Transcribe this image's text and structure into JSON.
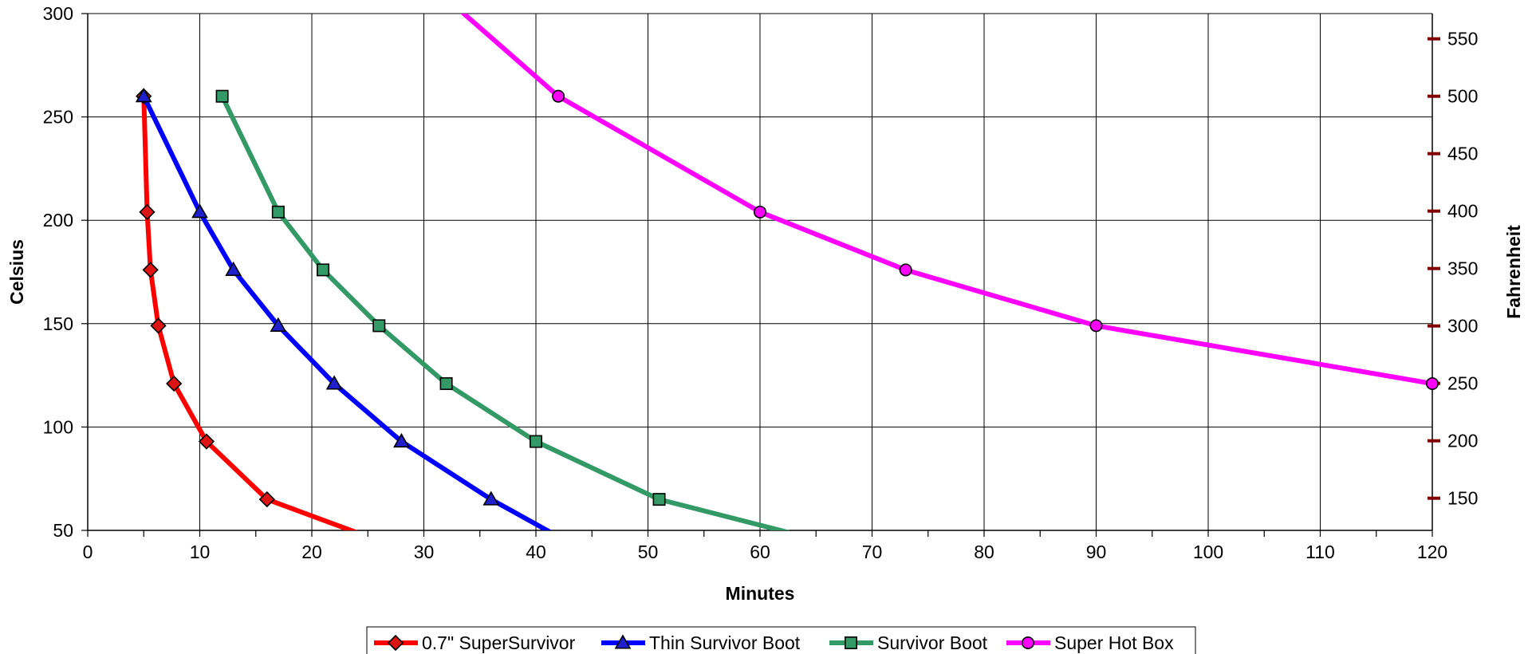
{
  "chart_data": {
    "type": "line",
    "xlabel": "Minutes",
    "ylabel": "Celsius",
    "y2label": "Fahrenheit",
    "xlim": [
      0,
      120
    ],
    "ylim": [
      50,
      300
    ],
    "x_ticks": [
      0,
      10,
      20,
      30,
      40,
      50,
      60,
      70,
      80,
      90,
      100,
      110,
      120
    ],
    "y_ticks": [
      50,
      100,
      150,
      200,
      250,
      300
    ],
    "y2_ticks": [
      150,
      200,
      250,
      300,
      350,
      400,
      450,
      500,
      550
    ],
    "grid": true,
    "legend": "bottom",
    "series": [
      {
        "name": "0.7\" SuperSurvivor",
        "color": "#ff0000",
        "marker": "diamond",
        "marker_fill": "#dc1414",
        "x": [
          5.0,
          5.3,
          5.6,
          6.3,
          7.7,
          10.6,
          16.0,
          24.5
        ],
        "y": [
          260,
          204,
          176,
          149,
          121,
          93,
          65,
          48
        ],
        "marker_count": 7
      },
      {
        "name": "Thin Survivor Boot",
        "color": "#0000ff",
        "marker": "triangle",
        "marker_fill": "#1f1fcc",
        "x": [
          5,
          10,
          13,
          17,
          22,
          28,
          36,
          42
        ],
        "y": [
          260,
          204,
          176,
          149,
          121,
          93,
          65,
          47
        ],
        "marker_count": 7
      },
      {
        "name": "Survivor Boot",
        "color": "#339966",
        "marker": "square",
        "marker_fill": "#339966",
        "x": [
          12,
          17,
          21,
          26,
          32,
          40,
          51,
          64
        ],
        "y": [
          260,
          204,
          176,
          149,
          121,
          93,
          65,
          47
        ],
        "marker_count": 7
      },
      {
        "name": "Super Hot Box",
        "color": "#ff00ff",
        "marker": "circle",
        "marker_fill": "#ff00ff",
        "x": [
          32.5,
          42,
          60,
          73,
          90,
          120
        ],
        "y": [
          305,
          260,
          204,
          176,
          149,
          121
        ],
        "marker_count": 5,
        "marker_offset": 1
      }
    ]
  }
}
